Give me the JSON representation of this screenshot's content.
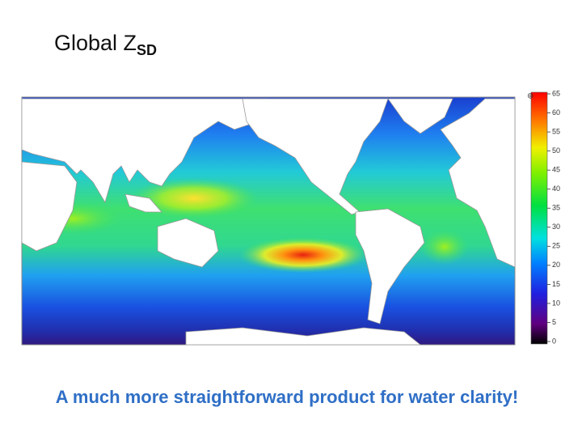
{
  "title": {
    "text": "Global Z",
    "subscript": "SD"
  },
  "colorbar": {
    "lim": [
      0,
      65
    ],
    "ticks": [
      0,
      5,
      10,
      15,
      20,
      25,
      30,
      35,
      40,
      45,
      50,
      55,
      60,
      65
    ]
  },
  "caption": "A much more straightforward product for water clarity!"
}
